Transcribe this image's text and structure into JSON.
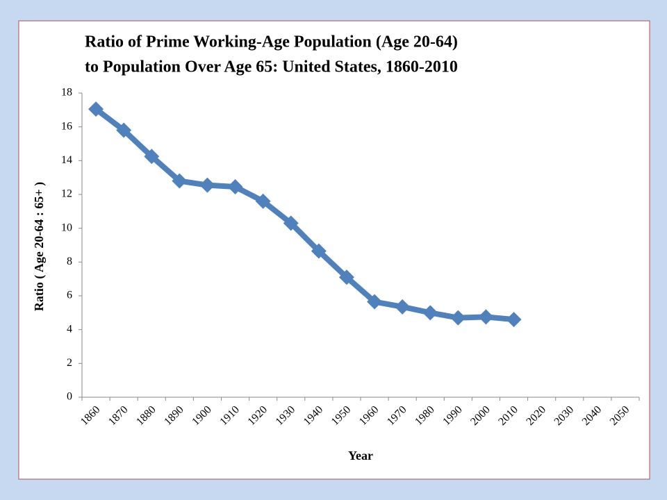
{
  "chart_data": {
    "type": "line",
    "title": [
      "Ratio of Prime Working-Age Population (Age 20-64)",
      "to Population Over Age 65: United States, 1860-2010"
    ],
    "x_label": "Year",
    "y_label": "Ratio ( Age 20-64 : 65+ )",
    "categories": [
      "1860",
      "1870",
      "1880",
      "1890",
      "1900",
      "1910",
      "1920",
      "1930",
      "1940",
      "1950",
      "1960",
      "1970",
      "1980",
      "1990",
      "2000",
      "2010",
      "2020",
      "2030",
      "2040",
      "2050"
    ],
    "values": [
      17.05,
      15.8,
      14.25,
      12.8,
      12.55,
      12.45,
      11.6,
      10.3,
      8.65,
      7.1,
      5.65,
      5.35,
      5.0,
      4.7,
      4.75,
      4.6,
      null,
      null,
      null,
      null
    ],
    "color": "#4f81bd",
    "ylim": [
      0,
      18
    ],
    "yticks": [
      0,
      2,
      4,
      6,
      8,
      10,
      12,
      14,
      16,
      18
    ],
    "grid": false
  }
}
